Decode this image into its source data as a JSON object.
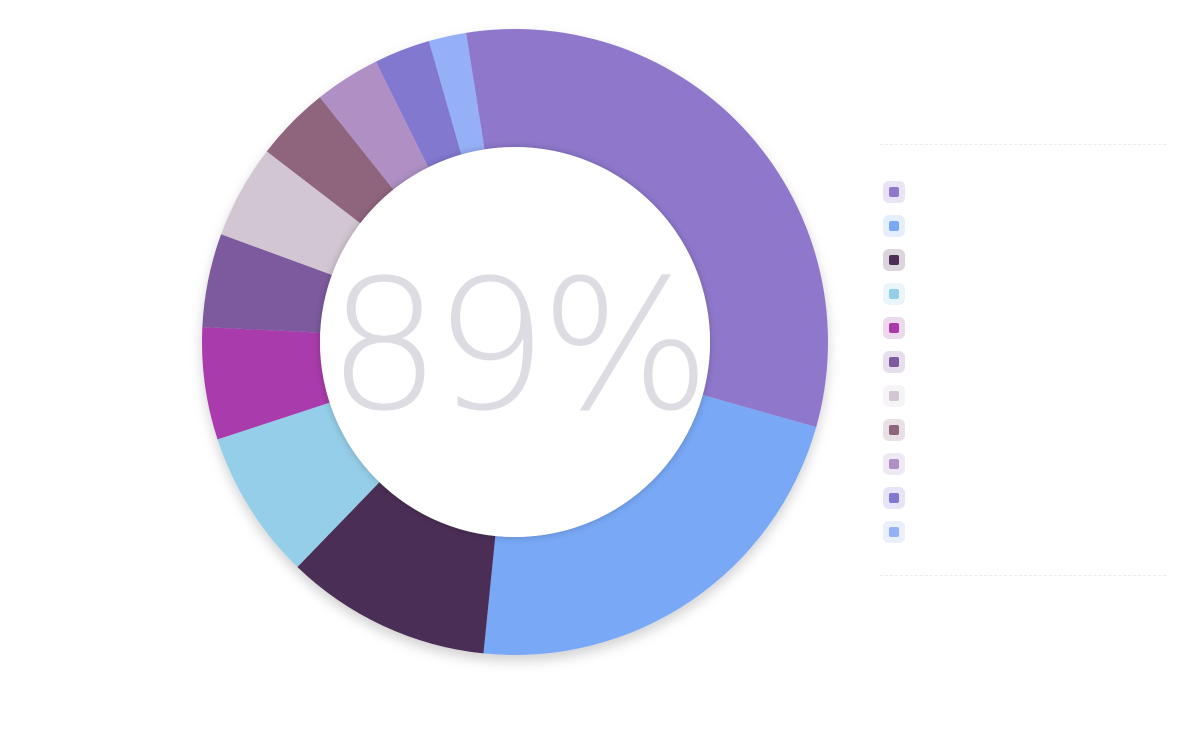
{
  "chart_data": {
    "type": "pie",
    "variant": "donut",
    "center_label": "89%",
    "labels": [
      "",
      "",
      "",
      "",
      "",
      "",
      "",
      "",
      "",
      "",
      ""
    ],
    "values": [
      33,
      23,
      11,
      8,
      6,
      5,
      5,
      4,
      3.5,
      3,
      2
    ],
    "colors": [
      "#8f78cc",
      "#78a8f6",
      "#4c2f56",
      "#95cee8",
      "#aa3aac",
      "#7d5a9e",
      "#d2c6d2",
      "#8f657d",
      "#b090c4",
      "#8278d0",
      "#96b0f8"
    ],
    "legend_position": "right"
  }
}
